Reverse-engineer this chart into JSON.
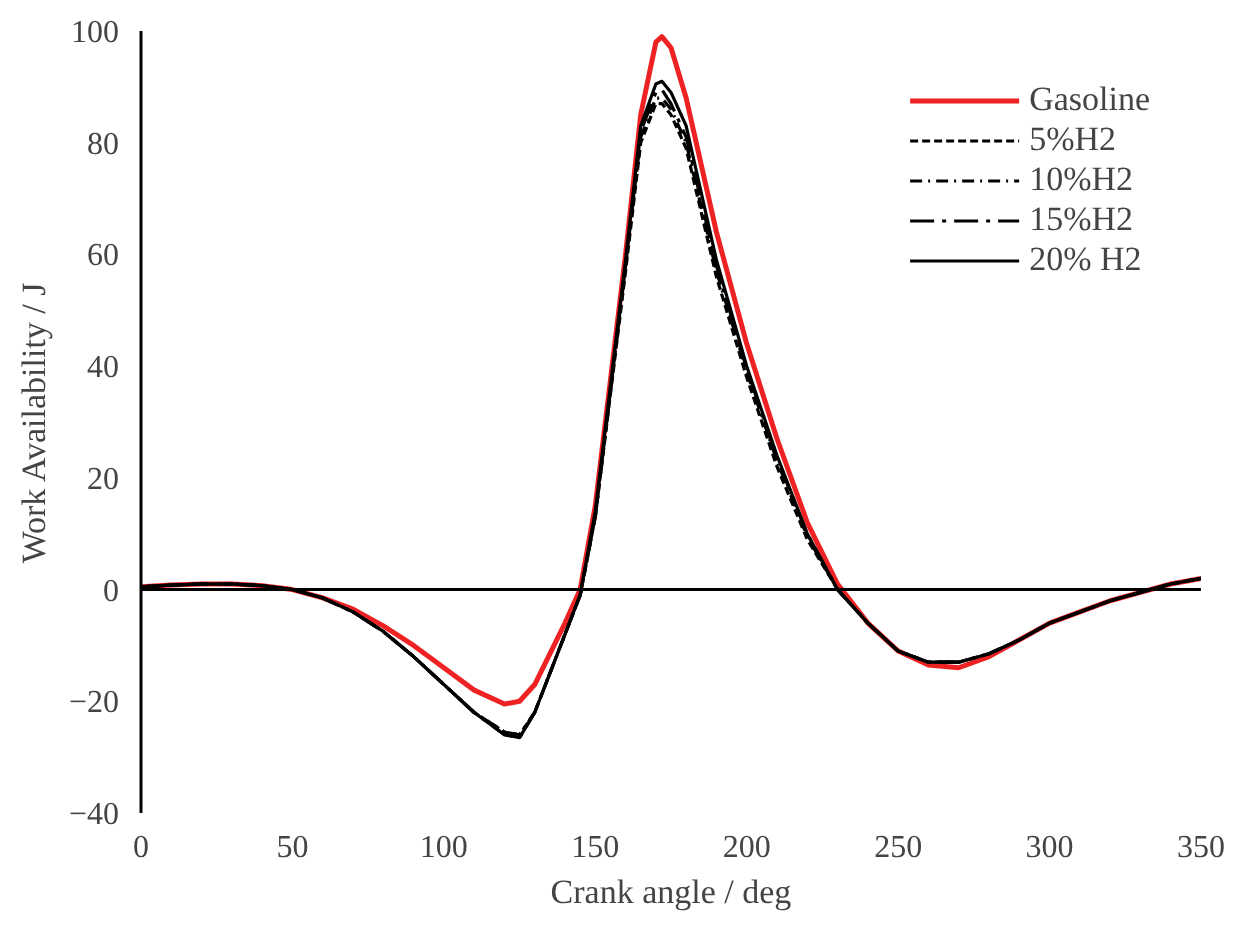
{
  "chart_data": {
    "type": "line",
    "xlabel": "Crank angle / deg",
    "ylabel": "Work Availability / J",
    "x": [
      0,
      10,
      20,
      30,
      40,
      50,
      60,
      70,
      80,
      90,
      100,
      110,
      120,
      125,
      130,
      140,
      145,
      150,
      160,
      165,
      170,
      172,
      175,
      180,
      190,
      200,
      210,
      220,
      230,
      240,
      250,
      260,
      270,
      280,
      290,
      300,
      310,
      320,
      330,
      340,
      350
    ],
    "series": [
      {
        "name": "Gasoline",
        "color": "#ee2222",
        "line_style": "solid",
        "values": [
          0.5,
          0.8,
          1,
          1,
          0.7,
          0,
          -1.5,
          -3.5,
          -6.5,
          -10,
          -14,
          -18,
          -20.5,
          -20,
          -17,
          -6,
          0,
          15,
          60,
          85,
          98,
          99,
          97,
          88,
          64,
          44,
          27,
          12,
          1,
          -6,
          -11,
          -13.5,
          -14,
          -12,
          -9,
          -6,
          -4,
          -2,
          -0.5,
          1,
          2
        ]
      },
      {
        "name": "5%H2",
        "color": "#000000",
        "line_style": "dashed",
        "values": [
          0.5,
          0.8,
          1,
          1,
          0.7,
          0,
          -1.5,
          -4,
          -7.5,
          -12,
          -17,
          -22,
          -25.5,
          -26,
          -22,
          -8,
          -1,
          13,
          57,
          80,
          87,
          87,
          85,
          79,
          56,
          38,
          22,
          9,
          0,
          -6,
          -11,
          -13,
          -13,
          -11.5,
          -9,
          -6,
          -4,
          -2,
          -0.5,
          1,
          2
        ]
      },
      {
        "name": "10%H2",
        "color": "#000000",
        "line_style": "dashdot",
        "values": [
          0.5,
          0.8,
          1,
          1,
          0.7,
          0,
          -1.5,
          -4,
          -7.5,
          -12,
          -17,
          -22,
          -25.5,
          -26,
          -22,
          -8,
          -1,
          13,
          58,
          81,
          88,
          88,
          86,
          80,
          57,
          39,
          23,
          9.5,
          0,
          -6,
          -11,
          -13,
          -13,
          -11.5,
          -9,
          -6,
          -4,
          -2,
          -0.5,
          1,
          2
        ]
      },
      {
        "name": "15%H2",
        "color": "#000000",
        "line_style": "longdashdot",
        "values": [
          0.5,
          0.8,
          1,
          1,
          0.7,
          0,
          -1.5,
          -4,
          -7.5,
          -12,
          -17,
          -22,
          -26,
          -26.5,
          -22,
          -8,
          -1,
          13,
          58,
          82,
          89,
          89.5,
          87,
          81,
          58,
          39.5,
          23.5,
          10,
          0,
          -6,
          -11,
          -13,
          -13,
          -11.5,
          -9,
          -6,
          -4,
          -2,
          -0.5,
          1,
          2
        ]
      },
      {
        "name": "20% H2",
        "color": "#000000",
        "line_style": "solid",
        "values": [
          0.5,
          0.8,
          1,
          1,
          0.7,
          0,
          -1.5,
          -4,
          -7.5,
          -12,
          -17,
          -22,
          -26,
          -26.5,
          -22,
          -8,
          -1,
          14,
          59,
          83,
          90.5,
          91,
          89,
          83,
          59,
          40,
          24,
          10,
          0,
          -6,
          -11,
          -13,
          -13,
          -11.5,
          -9,
          -6,
          -4,
          -2,
          -0.5,
          1,
          2
        ]
      }
    ],
    "xlim": [
      0,
      350
    ],
    "xticks": [
      0,
      50,
      100,
      150,
      200,
      250,
      300,
      350
    ],
    "ylim": [
      -40,
      100
    ],
    "yticks": [
      -40,
      -20,
      0,
      20,
      40,
      60,
      80,
      100
    ],
    "ref_lines": [
      {
        "axis": "y",
        "value": 0
      }
    ],
    "grid": false,
    "legend": "top right",
    "marker": "none"
  }
}
